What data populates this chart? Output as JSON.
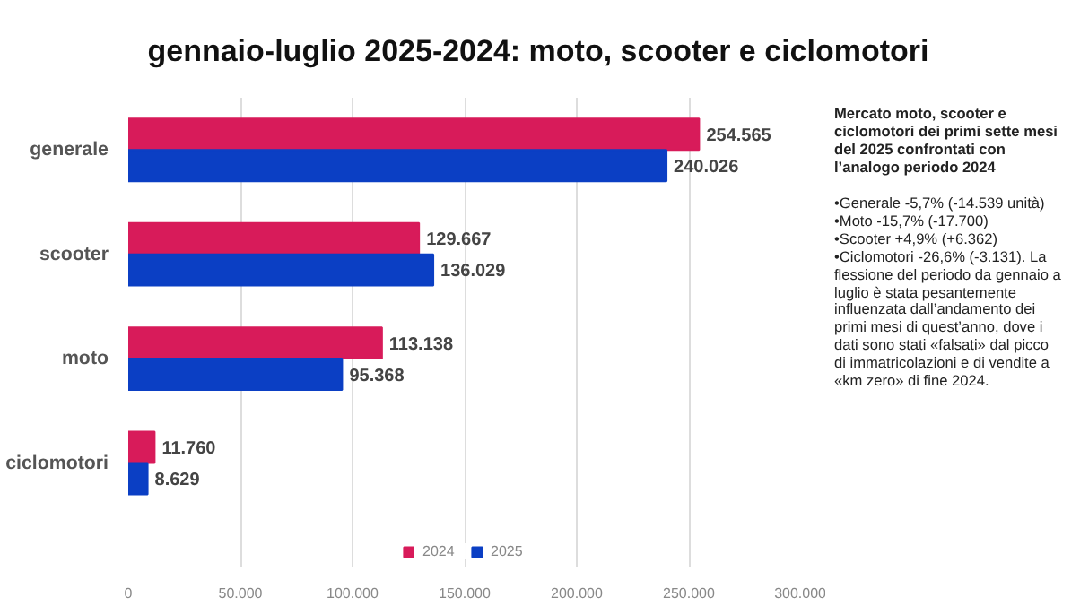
{
  "chart_data": {
    "type": "bar",
    "orientation": "horizontal",
    "title": "gennaio-luglio 2025-2024: moto, scooter e ciclomotori",
    "categories": [
      "generale",
      "scooter",
      "moto",
      "ciclomotori"
    ],
    "series": [
      {
        "name": "2024",
        "color": "#d81b5a",
        "values": [
          254565,
          129667,
          113138,
          11760
        ],
        "value_labels": [
          "254.565",
          "129.667",
          "113.138",
          "11.760"
        ]
      },
      {
        "name": "2025",
        "color": "#0b3fc4",
        "values": [
          240026,
          136029,
          95368,
          8629
        ],
        "value_labels": [
          "240.026",
          "136.029",
          "95.368",
          "8.629"
        ]
      }
    ],
    "xlim": [
      0,
      300000
    ],
    "xticks": [
      0,
      {
        "value": 50000,
        "label": "50.000"
      },
      {
        "value": 100000,
        "label": "100.000"
      },
      {
        "value": 150000,
        "label": "150.000"
      },
      {
        "value": 200000,
        "label": "200.000"
      },
      {
        "value": 250000,
        "label": "250.000"
      },
      {
        "value": 300000,
        "label": "300.000"
      }
    ],
    "grid": "x",
    "legend": "bottom",
    "annotations": [
      "Mercato moto, scooter e ciclomotori dei primi sette mesi del 2025 confrontati con l’analogo periodo 2024",
      "•Generale -5,7% (-14.539 unità)",
      "•Moto -15,7% (-17.700)",
      "•Scooter +4,9% (+6.362)",
      "•Ciclomotori -26,6% (-3.131). La flessione del periodo da gennaio a luglio è stata pesantemente influenzata dall’andamento dei primi mesi di quest’anno, dove i dati sono stati «falsati» dal picco di immatricolazioni e di vendite a «km zero» di fine 2024."
    ]
  }
}
